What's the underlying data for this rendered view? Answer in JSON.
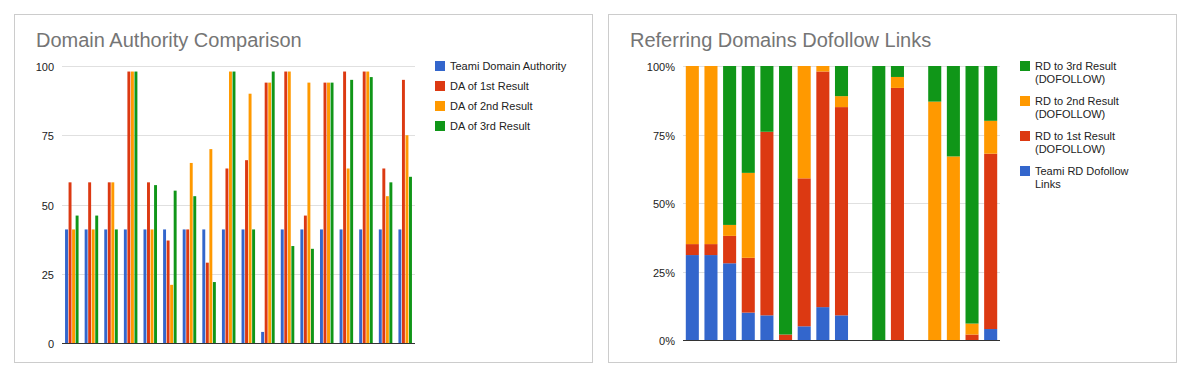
{
  "chart_data": [
    {
      "type": "bar",
      "title": "Domain Authority Comparison",
      "categories": [
        null,
        null,
        null,
        null,
        null,
        null,
        null,
        null,
        null,
        null,
        null,
        null,
        null,
        null,
        null,
        null,
        null,
        null
      ],
      "series": [
        {
          "name": "Teami Domain Authority",
          "color": "#3366cc",
          "values": [
            41,
            41,
            41,
            41,
            41,
            41,
            41,
            41,
            41,
            41,
            4,
            41,
            41,
            41,
            41,
            41,
            41,
            41
          ]
        },
        {
          "name": "DA of 1st Result",
          "color": "#dc3912",
          "values": [
            58,
            58,
            58,
            98,
            58,
            37,
            41,
            29,
            63,
            66,
            94,
            98,
            46,
            94,
            98,
            98,
            63,
            95
          ]
        },
        {
          "name": "DA of 2nd Result",
          "color": "#ff9900",
          "values": [
            41,
            41,
            58,
            98,
            41,
            21,
            65,
            70,
            98,
            90,
            94,
            98,
            94,
            94,
            63,
            98,
            53,
            75
          ]
        },
        {
          "name": "DA of 3rd Result",
          "color": "#109618",
          "values": [
            46,
            46,
            41,
            98,
            57,
            55,
            53,
            22,
            98,
            41,
            98,
            35,
            34,
            94,
            95,
            96,
            58,
            60
          ]
        }
      ],
      "ylim": [
        0,
        100
      ],
      "yticks": [
        0,
        25,
        50,
        75,
        100
      ],
      "grid": true,
      "legend": "right",
      "tick_labels": "y"
    },
    {
      "type": "bar",
      "title": "Referring Domains Dofollow Links",
      "stacked": true,
      "categories": [
        null,
        null,
        null,
        null,
        null,
        null,
        null,
        null,
        null,
        null,
        null,
        null,
        null,
        null,
        null,
        null,
        null
      ],
      "series": [
        {
          "name": "Teami RD Dofollow Links",
          "color": "#3366cc",
          "values": [
            31,
            31,
            28,
            10,
            9,
            0,
            5,
            12,
            9,
            0,
            0,
            0,
            0,
            0,
            0,
            0,
            4
          ]
        },
        {
          "name": "RD to 1st Result (DOFOLLOW)",
          "color": "#dc3912",
          "values": [
            4,
            4,
            10,
            20,
            67,
            2,
            54,
            86,
            76,
            0,
            0,
            92,
            0,
            0,
            0,
            2,
            64
          ]
        },
        {
          "name": "RD to 2nd Result (DOFOLLOW)",
          "color": "#ff9900",
          "values": [
            65,
            65,
            4,
            31,
            0,
            0,
            41,
            2,
            4,
            0,
            0,
            4,
            0,
            87,
            67,
            4,
            12
          ]
        },
        {
          "name": "RD to 3rd Result (DOFOLLOW)",
          "color": "#109618",
          "values": [
            0,
            0,
            58,
            39,
            24,
            98,
            0,
            0,
            11,
            0,
            100,
            4,
            0,
            13,
            33,
            94,
            20
          ]
        }
      ],
      "ylim": [
        0,
        100
      ],
      "yticks": [
        {
          "value": 0,
          "label": "0%"
        },
        {
          "value": 25,
          "label": "25%"
        },
        {
          "value": 50,
          "label": "50%"
        },
        {
          "value": 75,
          "label": "75%"
        },
        {
          "value": 100,
          "label": "100%"
        }
      ],
      "grid": true,
      "legend": "right",
      "tick_labels": "y"
    }
  ]
}
